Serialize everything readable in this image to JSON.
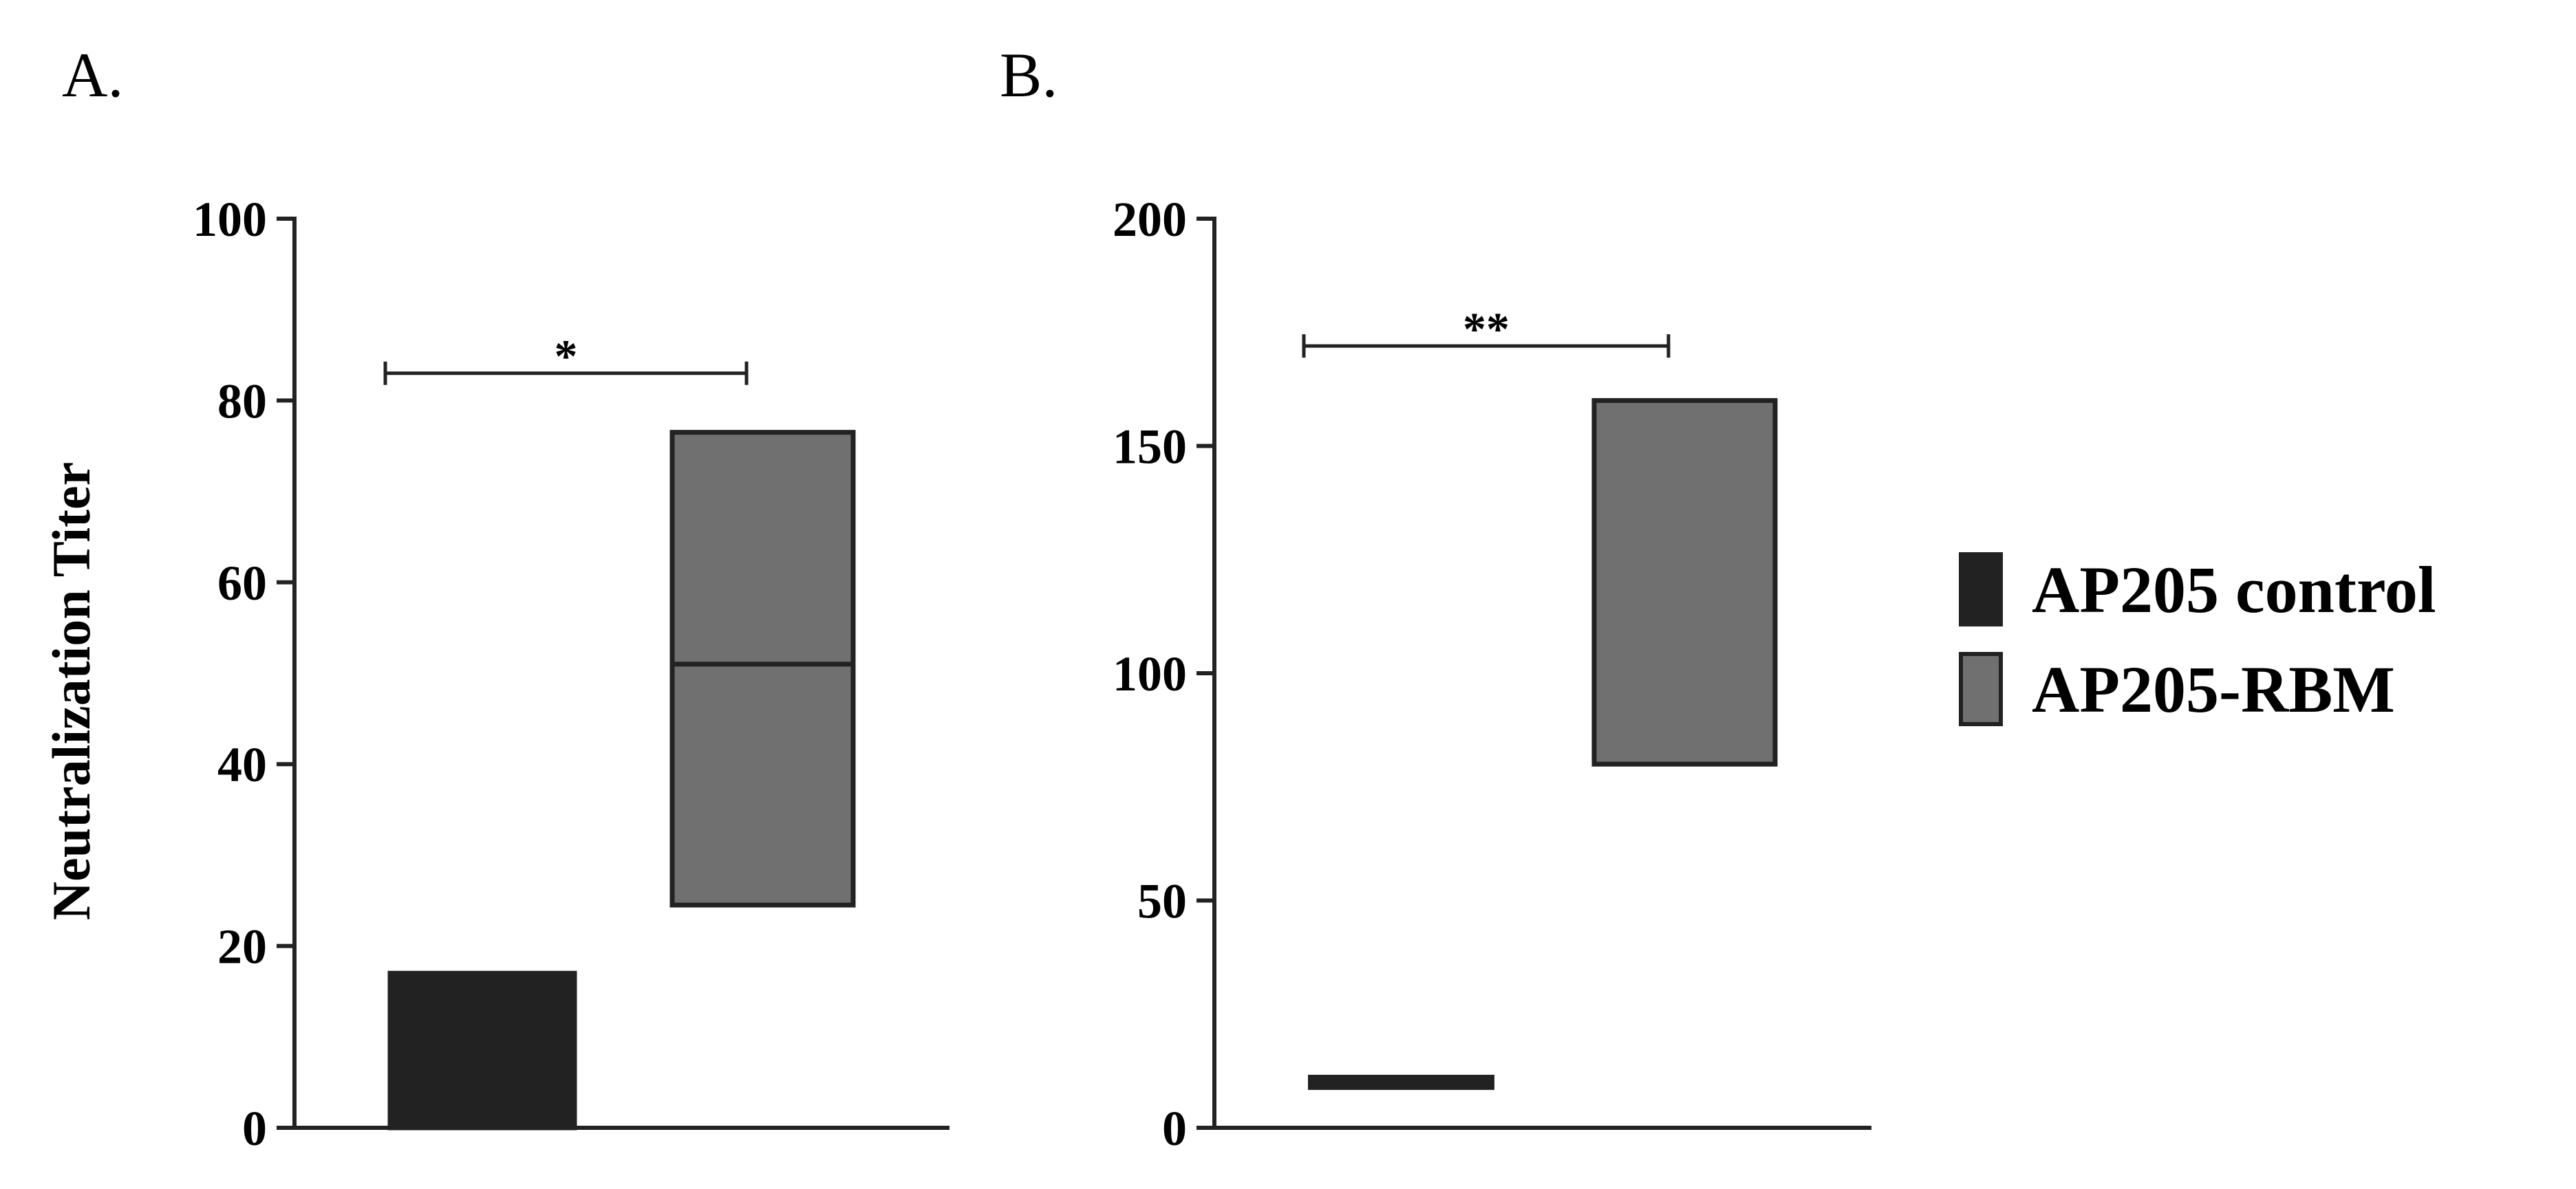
{
  "colors": {
    "control": "#222222",
    "rbm": "#707070",
    "axis": "#222222"
  },
  "legend": {
    "items": [
      {
        "label": "AP205 control",
        "series": "control"
      },
      {
        "label": "AP205-RBM",
        "series": "rbm"
      }
    ]
  },
  "y_axis_title": "Neutralization Titer",
  "chart_data": [
    {
      "type": "box",
      "panel_label": "A.",
      "ylim": [
        0,
        100
      ],
      "yticks": [
        0,
        20,
        40,
        60,
        80,
        100
      ],
      "ylabel": "Neutralization Titer",
      "series": [
        {
          "name": "AP205 control",
          "key": "control",
          "min": 0,
          "max": 17,
          "median": 0
        },
        {
          "name": "AP205-RBM",
          "key": "rbm",
          "min": 24.5,
          "max": 76.5,
          "median": 51
        }
      ],
      "significance": {
        "label": "*",
        "y": 83
      }
    },
    {
      "type": "box",
      "panel_label": "B.",
      "ylim": [
        0,
        200
      ],
      "yticks": [
        0,
        50,
        100,
        150,
        200
      ],
      "series": [
        {
          "name": "AP205 control",
          "key": "control",
          "min": 10,
          "max": 10,
          "median": 10
        },
        {
          "name": "AP205-RBM",
          "key": "rbm",
          "min": 80,
          "max": 160,
          "median": 80
        }
      ],
      "significance": {
        "label": "**",
        "y": 172
      }
    }
  ]
}
